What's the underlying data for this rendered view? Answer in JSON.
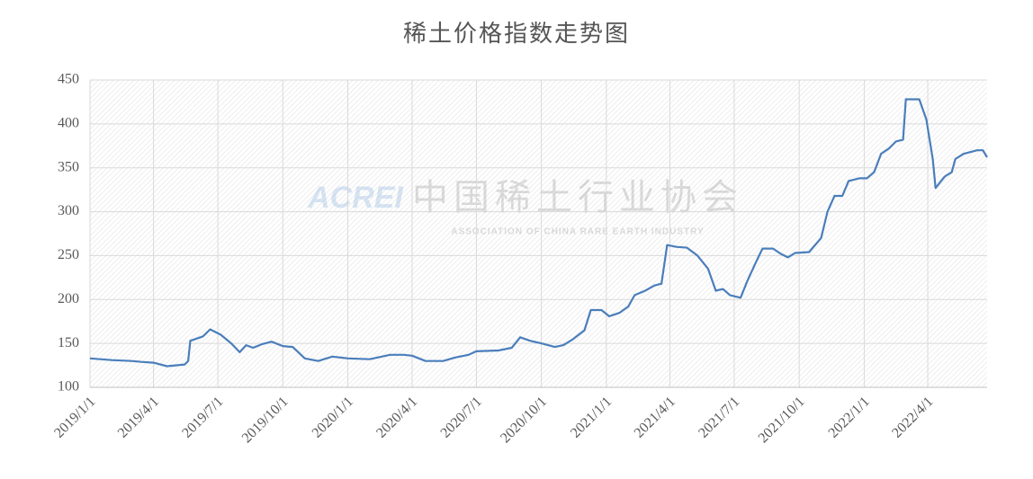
{
  "chart_data": {
    "type": "line",
    "title": "稀土价格指数走势图",
    "watermark": {
      "logo": "ACREI",
      "name": "中国稀土行业协会",
      "subtitle": "ASSOCIATION OF CHINA RARE EARTH INDUSTRY"
    },
    "xlim": [
      "2019/1/1",
      "2022/6/24"
    ],
    "xticks": [
      "2019/1/1",
      "2019/4/1",
      "2019/7/1",
      "2019/10/1",
      "2020/1/1",
      "2020/4/1",
      "2020/7/1",
      "2020/10/1",
      "2021/1/1",
      "2021/4/1",
      "2021/7/1",
      "2021/10/1",
      "2022/1/1",
      "2022/4/1"
    ],
    "ylim": [
      100,
      450
    ],
    "yticks": [
      100,
      150,
      200,
      250,
      300,
      350,
      400,
      450
    ],
    "grid": true,
    "series": [
      {
        "color": "#4a7ebb",
        "x": [
          "2019/1/1",
          "2019/2/1",
          "2019/3/1",
          "2019/3/15",
          "2019/4/1",
          "2019/4/20",
          "2019/5/15",
          "2019/5/20",
          "2019/5/23",
          "2019/6/10",
          "2019/6/20",
          "2019/7/5",
          "2019/7/20",
          "2019/8/1",
          "2019/8/10",
          "2019/8/20",
          "2019/9/1",
          "2019/9/15",
          "2019/10/1",
          "2019/10/15",
          "2019/11/1",
          "2019/11/20",
          "2019/12/10",
          "2020/1/1",
          "2020/2/1",
          "2020/3/1",
          "2020/3/20",
          "2020/4/1",
          "2020/4/20",
          "2020/5/15",
          "2020/6/1",
          "2020/6/20",
          "2020/7/1",
          "2020/8/1",
          "2020/8/20",
          "2020/9/1",
          "2020/9/15",
          "2020/10/1",
          "2020/10/20",
          "2020/11/1",
          "2020/11/15",
          "2020/12/1",
          "2020/12/10",
          "2020/12/25",
          "2021/1/5",
          "2021/1/20",
          "2021/2/1",
          "2021/2/10",
          "2021/2/25",
          "2021/3/10",
          "2021/3/20",
          "2021/3/28",
          "2021/4/10",
          "2021/4/25",
          "2021/5/10",
          "2021/5/25",
          "2021/6/5",
          "2021/6/15",
          "2021/6/25",
          "2021/7/10",
          "2021/7/20",
          "2021/8/1",
          "2021/8/10",
          "2021/8/25",
          "2021/9/5",
          "2021/9/15",
          "2021/9/25",
          "2021/10/15",
          "2021/11/1",
          "2021/11/10",
          "2021/11/20",
          "2021/12/1",
          "2021/12/10",
          "2021/12/25",
          "2022/1/5",
          "2022/1/15",
          "2022/1/25",
          "2022/2/5",
          "2022/2/15",
          "2022/2/25",
          "2022/3/1",
          "2022/3/20",
          "2022/3/30",
          "2022/4/8",
          "2022/4/12",
          "2022/4/25",
          "2022/5/5",
          "2022/5/10",
          "2022/5/22",
          "2022/6/1",
          "2022/6/10",
          "2022/6/18",
          "2022/6/24"
        ],
        "values": [
          133,
          131,
          130,
          129,
          128,
          124,
          126,
          130,
          153,
          158,
          166,
          160,
          150,
          140,
          148,
          145,
          149,
          152,
          147,
          146,
          133,
          130,
          135,
          133,
          132,
          137,
          137,
          136,
          130,
          130,
          134,
          137,
          141,
          142,
          145,
          157,
          153,
          150,
          146,
          148,
          155,
          165,
          188,
          188,
          181,
          185,
          192,
          205,
          210,
          216,
          218,
          262,
          260,
          259,
          250,
          235,
          210,
          212,
          205,
          202,
          222,
          243,
          258,
          258,
          252,
          248,
          253,
          254,
          270,
          300,
          318,
          318,
          335,
          338,
          338,
          345,
          366,
          372,
          380,
          382,
          428,
          428,
          405,
          360,
          327,
          340,
          345,
          360,
          366,
          368,
          370,
          370,
          362
        ]
      }
    ]
  }
}
